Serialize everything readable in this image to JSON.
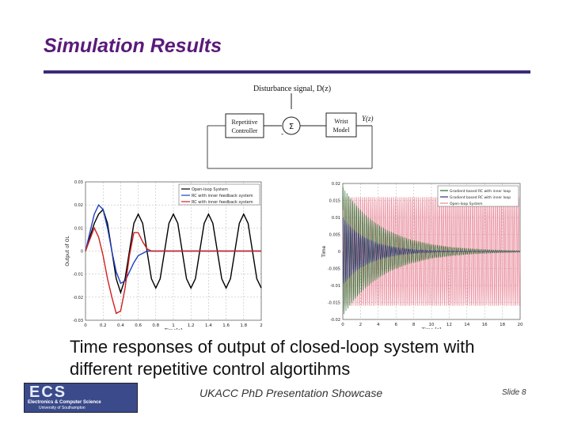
{
  "slide": {
    "title": "Simulation Results",
    "caption_line1": "Time responses of output of closed-loop system with",
    "caption_line2": "different repetitive control algortihms",
    "footer": "UKACC PhD Presentation Showcase",
    "slide_number": "Slide 8"
  },
  "logo": {
    "big": "ECS",
    "line1": "Electronics & Computer Science",
    "line2": "University of Southampton"
  },
  "block_diagram": {
    "disturbance": "Disturbance signal, D(z)",
    "controller_line1": "Repetitive",
    "controller_line2": "Controller",
    "sum_symbol": "Σ",
    "minus_sign": "-",
    "plant_line1": "Wrist",
    "plant_line2": "Model",
    "output": "Y(z)"
  },
  "chart_data": [
    {
      "type": "line",
      "legend": [
        "Open-loop System",
        "RC with inner feedback system",
        "RC with inner feedback system"
      ],
      "legend_position": "top-right",
      "xlabel": "Time[s]",
      "ylabel": "Output of OL",
      "xlim": [
        0,
        2
      ],
      "ylim": [
        -0.03,
        0.03
      ],
      "x_ticks": [
        "0",
        "0.2",
        "0.4",
        "0.6",
        "0.8",
        "1",
        "1.2",
        "1.4",
        "1.6",
        "1.8",
        "2"
      ],
      "y_ticks": [
        "0.03",
        "0.02",
        "0.01",
        "0",
        "-0.01",
        "-0.02",
        "-0.03"
      ],
      "grid": true,
      "series": [
        {
          "name": "Open-loop System",
          "color": "#000000",
          "x": [
            0,
            0.05,
            0.1,
            0.15,
            0.2,
            0.25,
            0.3,
            0.35,
            0.4,
            0.45,
            0.5,
            0.55,
            0.6,
            0.65,
            0.7,
            0.75,
            0.8,
            0.85,
            0.9,
            0.95,
            1,
            1.05,
            1.1,
            1.15,
            1.2,
            1.25,
            1.3,
            1.35,
            1.4,
            1.45,
            1.5,
            1.55,
            1.6,
            1.65,
            1.7,
            1.75,
            1.8,
            1.85,
            1.9,
            1.95,
            2
          ],
          "y": [
            0,
            0.006,
            0.012,
            0.016,
            0.018,
            0.012,
            0,
            -0.012,
            -0.018,
            -0.012,
            0,
            0.012,
            0.016,
            0.012,
            0,
            -0.012,
            -0.016,
            -0.012,
            0,
            0.012,
            0.016,
            0.012,
            0,
            -0.012,
            -0.016,
            -0.012,
            0,
            0.012,
            0.016,
            0.012,
            0,
            -0.012,
            -0.016,
            -0.012,
            0,
            0.012,
            0.016,
            0.012,
            0,
            -0.012,
            -0.016
          ]
        },
        {
          "name": "RC with inner feedback system",
          "color": "#1f3fbf",
          "x": [
            0,
            0.05,
            0.1,
            0.15,
            0.2,
            0.25,
            0.3,
            0.35,
            0.4,
            0.45,
            0.5,
            0.55,
            0.6,
            0.65,
            0.7,
            0.75,
            0.8,
            0.9,
            1,
            1.2,
            1.4,
            1.6,
            1.8,
            2
          ],
          "y": [
            0,
            0.008,
            0.016,
            0.02,
            0.018,
            0.01,
            0,
            -0.009,
            -0.014,
            -0.013,
            -0.009,
            -0.005,
            -0.002,
            -0.001,
            0,
            0,
            0,
            0,
            0,
            0,
            0,
            0,
            0,
            0
          ]
        },
        {
          "name": "RC with inner feedback system",
          "color": "#d02020",
          "x": [
            0,
            0.05,
            0.1,
            0.15,
            0.2,
            0.25,
            0.3,
            0.35,
            0.4,
            0.45,
            0.5,
            0.55,
            0.6,
            0.65,
            0.7,
            0.75,
            0.8,
            0.9,
            1,
            1.2,
            1.4,
            1.6,
            1.8,
            2
          ],
          "y": [
            0,
            0.005,
            0.01,
            0.006,
            -0.002,
            -0.012,
            -0.02,
            -0.027,
            -0.026,
            -0.016,
            -0.002,
            0.008,
            0.008,
            0.004,
            0.001,
            0,
            0,
            0,
            0,
            0,
            0,
            0,
            0,
            0
          ]
        }
      ]
    },
    {
      "type": "line",
      "legend": [
        "Gradient based RC with inner loop",
        "Gradient based RC with inner loop",
        "Open-loop System"
      ],
      "legend_position": "top-right",
      "xlabel": "Time [s]",
      "ylabel": "Time",
      "xlim": [
        0,
        20
      ],
      "ylim": [
        -0.02,
        0.02
      ],
      "x_ticks": [
        "0",
        "2",
        "4",
        "6",
        "8",
        "10",
        "12",
        "14",
        "16",
        "18",
        "20"
      ],
      "y_ticks": [
        "0.02",
        "0.015",
        "0.01",
        "0.005",
        "0",
        "-0.005",
        "-0.01",
        "-0.015",
        "-0.02"
      ],
      "grid": true,
      "series": [
        {
          "name": "Open-loop System",
          "color": "#e88a9a",
          "amplitude": 0.016,
          "decay": 0
        },
        {
          "name": "Gradient based RC with inner loop",
          "color": "#2a6a2a",
          "amplitude": 0.019,
          "decay": 0.22
        },
        {
          "name": "Gradient based RC with inner loop",
          "color": "#303080",
          "amplitude": 0.01,
          "decay": 0.35
        }
      ]
    }
  ]
}
